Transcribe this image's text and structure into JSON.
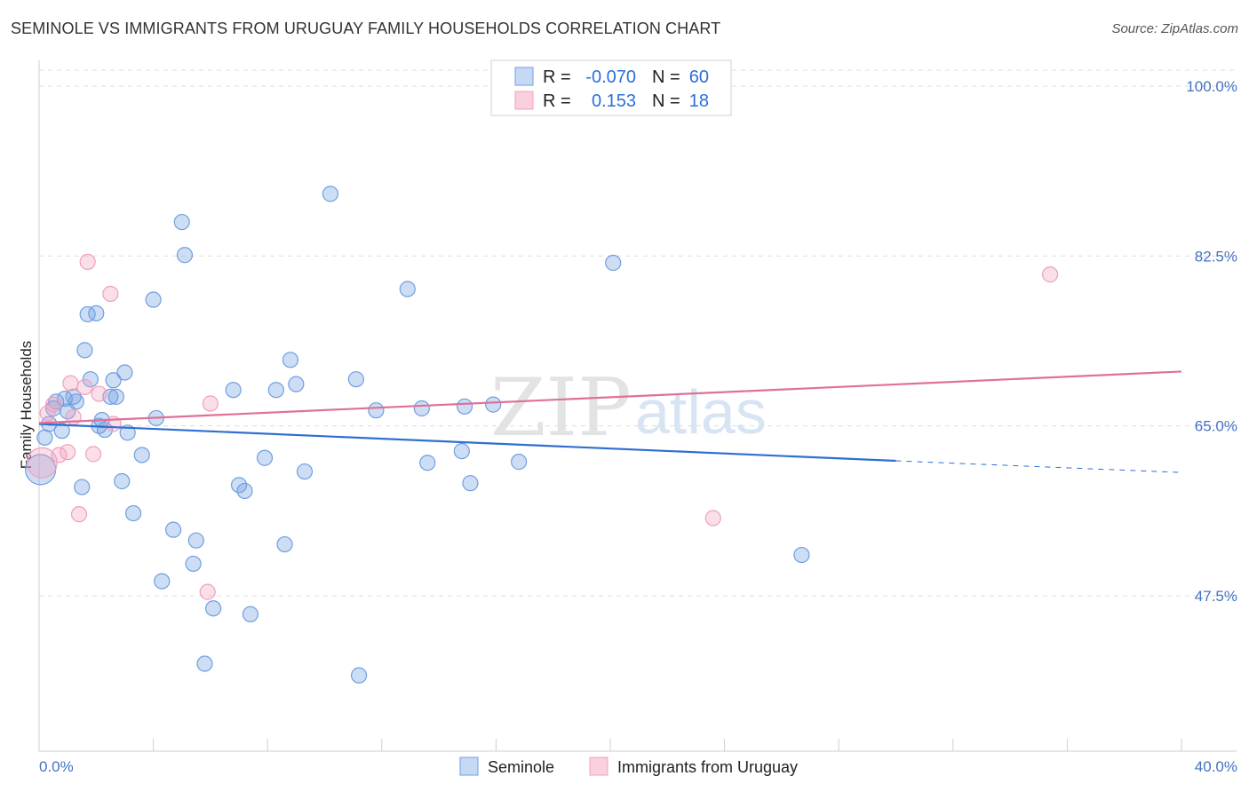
{
  "title": "SEMINOLE VS IMMIGRANTS FROM URUGUAY FAMILY HOUSEHOLDS CORRELATION CHART",
  "source": "Source: ZipAtlas.com",
  "watermark": {
    "zip": "ZIP",
    "atlas": "atlas"
  },
  "chart_data": {
    "type": "scatter",
    "title": "SEMINOLE VS IMMIGRANTS FROM URUGUAY FAMILY HOUSEHOLDS CORRELATION CHART",
    "xlabel": "",
    "ylabel": "Family Households",
    "xlim": [
      0,
      40
    ],
    "ylim": [
      31,
      102
    ],
    "x_tick_labels": [
      "0.0%",
      "40.0%"
    ],
    "y_ticks": [
      47.5,
      65.0,
      82.5,
      100.0
    ],
    "y_tick_labels": [
      "47.5%",
      "65.0%",
      "82.5%",
      "100.0%"
    ],
    "colors": {
      "seminole": "#6f9fe0",
      "uruguay": "#f0a0bc",
      "seminole_line": "#2f6fd0",
      "uruguay_line": "#e07098",
      "tick_text": "#4472c4"
    },
    "legend": {
      "rows": [
        {
          "r_label": "R =",
          "r_value": "-0.070",
          "n_label": "N =",
          "n_value": "60"
        },
        {
          "r_label": "R =",
          "r_value": "0.153",
          "n_label": "N =",
          "n_value": "18"
        }
      ]
    },
    "series": [
      {
        "name": "Seminole",
        "points": [
          [
            0.05,
            60.5
          ],
          [
            0.2,
            63.8
          ],
          [
            0.35,
            65.2
          ],
          [
            0.5,
            66.8
          ],
          [
            0.6,
            67.5
          ],
          [
            0.8,
            64.5
          ],
          [
            0.9,
            67.8
          ],
          [
            1.0,
            66.5
          ],
          [
            1.2,
            68.0
          ],
          [
            1.3,
            67.5
          ],
          [
            1.5,
            58.7
          ],
          [
            1.6,
            72.8
          ],
          [
            1.7,
            76.5
          ],
          [
            1.8,
            69.8
          ],
          [
            2.0,
            76.6
          ],
          [
            2.1,
            65.0
          ],
          [
            2.2,
            65.6
          ],
          [
            2.3,
            64.6
          ],
          [
            2.5,
            68.0
          ],
          [
            2.6,
            69.7
          ],
          [
            2.7,
            68.0
          ],
          [
            2.9,
            59.3
          ],
          [
            3.0,
            70.5
          ],
          [
            3.1,
            64.3
          ],
          [
            3.3,
            56.0
          ],
          [
            3.6,
            62.0
          ],
          [
            4.0,
            78.0
          ],
          [
            4.1,
            65.8
          ],
          [
            4.3,
            49.0
          ],
          [
            4.7,
            54.3
          ],
          [
            5.0,
            86.0
          ],
          [
            5.1,
            82.6
          ],
          [
            5.4,
            50.8
          ],
          [
            5.5,
            53.2
          ],
          [
            5.8,
            40.5
          ],
          [
            6.1,
            46.2
          ],
          [
            6.8,
            68.7
          ],
          [
            7.0,
            58.9
          ],
          [
            7.2,
            58.3
          ],
          [
            7.4,
            45.6
          ],
          [
            7.9,
            61.7
          ],
          [
            8.3,
            68.7
          ],
          [
            8.6,
            52.8
          ],
          [
            8.8,
            71.8
          ],
          [
            9.0,
            69.3
          ],
          [
            9.3,
            60.3
          ],
          [
            10.2,
            88.9
          ],
          [
            11.1,
            69.8
          ],
          [
            11.2,
            39.3
          ],
          [
            11.8,
            66.6
          ],
          [
            12.9,
            79.1
          ],
          [
            13.4,
            66.8
          ],
          [
            13.6,
            61.2
          ],
          [
            14.8,
            62.4
          ],
          [
            14.9,
            67.0
          ],
          [
            15.1,
            59.1
          ],
          [
            15.9,
            67.2
          ],
          [
            16.8,
            61.3
          ],
          [
            20.1,
            81.8
          ],
          [
            26.7,
            51.7
          ]
        ]
      },
      {
        "name": "Immigrants from Uruguay",
        "points": [
          [
            0.1,
            61.2
          ],
          [
            0.3,
            66.3
          ],
          [
            0.5,
            67.2
          ],
          [
            0.7,
            62.0
          ],
          [
            1.0,
            62.3
          ],
          [
            1.1,
            69.4
          ],
          [
            1.4,
            55.9
          ],
          [
            1.6,
            69.0
          ],
          [
            1.7,
            81.9
          ],
          [
            1.9,
            62.1
          ],
          [
            2.1,
            68.3
          ],
          [
            2.5,
            78.6
          ],
          [
            2.6,
            65.2
          ],
          [
            5.9,
            47.9
          ],
          [
            6.0,
            67.3
          ],
          [
            23.6,
            55.5
          ],
          [
            35.4,
            80.6
          ],
          [
            1.2,
            65.9
          ]
        ]
      }
    ],
    "trendlines": [
      {
        "name": "Seminole",
        "x": [
          0,
          30
        ],
        "y": [
          65.2,
          61.4
        ],
        "dashed_x": [
          30,
          40
        ],
        "dashed_y": [
          61.4,
          60.2
        ]
      },
      {
        "name": "Immigrants from Uruguay",
        "x": [
          0,
          40
        ],
        "y": [
          65.3,
          70.6
        ]
      }
    ]
  },
  "bottom_legend": [
    "Seminole",
    "Immigrants from Uruguay"
  ]
}
